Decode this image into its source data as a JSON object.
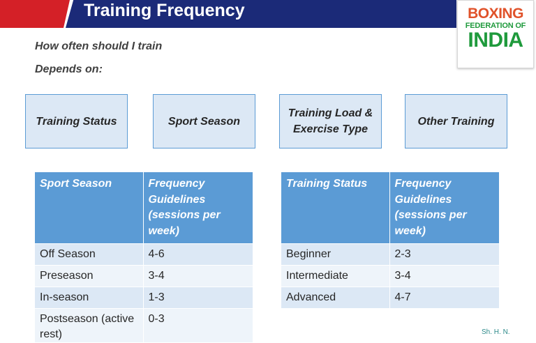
{
  "header": {
    "title": "Training Frequency"
  },
  "logo": {
    "line1": "BOXING",
    "line2": "FEDERATION OF",
    "line3": "INDIA"
  },
  "intro": {
    "line1": "How often should I train",
    "line2": "Depends on:"
  },
  "factors": [
    {
      "label": "Training Status"
    },
    {
      "label": "Sport Season"
    },
    {
      "label": "Training Load & Exercise Type"
    },
    {
      "label": "Other Training"
    }
  ],
  "season_table": {
    "headers": [
      "Sport Season",
      "Frequency Guidelines (sessions per week)"
    ],
    "rows": [
      [
        "Off Season",
        "4-6"
      ],
      [
        "Preseason",
        "3-4"
      ],
      [
        "In-season",
        "1-3"
      ],
      [
        "Postseason (active rest)",
        "0-3"
      ]
    ]
  },
  "status_table": {
    "headers": [
      "Training Status",
      "Frequency Guidelines (sessions per week)"
    ],
    "rows": [
      [
        "Beginner",
        "2-3"
      ],
      [
        "Intermediate",
        "3-4"
      ],
      [
        "Advanced",
        "4-7"
      ]
    ]
  },
  "footnote": "Sh. H. N."
}
